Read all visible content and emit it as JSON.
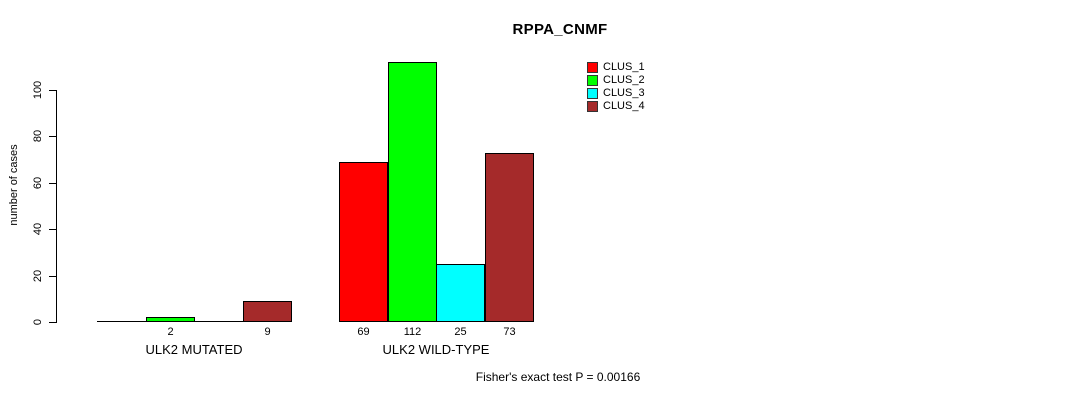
{
  "title": "RPPA_CNMF",
  "chart_data": {
    "type": "bar",
    "title": "RPPA_CNMF",
    "xlabel": "",
    "ylabel": "number of cases",
    "yticks": [
      0,
      20,
      40,
      60,
      80,
      100
    ],
    "ylim": [
      0,
      116
    ],
    "grid": false,
    "legend_position": "top-right-inside",
    "categories": [
      "ULK2 MUTATED",
      "ULK2 WILD-TYPE"
    ],
    "series": [
      {
        "name": "CLUS_1",
        "color": "#ff0000",
        "values": [
          0,
          69
        ]
      },
      {
        "name": "CLUS_2",
        "color": "#00ff00",
        "values": [
          2,
          112
        ]
      },
      {
        "name": "CLUS_3",
        "color": "#00ffff",
        "values": [
          0,
          25
        ]
      },
      {
        "name": "CLUS_4",
        "color": "#a52a2a",
        "values": [
          9,
          73
        ]
      }
    ],
    "bar_value_labels": {
      "ULK2 MUTATED": [
        "",
        "2",
        "",
        "9"
      ],
      "ULK2 WILD-TYPE": [
        "69",
        "112",
        "25",
        "73"
      ]
    },
    "annotation": "Fisher's exact test P = 0.00166"
  }
}
